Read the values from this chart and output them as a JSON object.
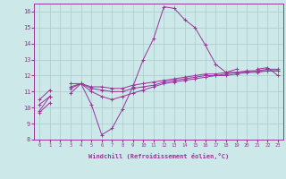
{
  "title": "",
  "xlabel": "Windchill (Refroidissement éolien,°C)",
  "background_color": "#cce8e8",
  "grid_color": "#aacccc",
  "line_color": "#993399",
  "x_values": [
    0,
    1,
    2,
    3,
    4,
    5,
    6,
    7,
    8,
    9,
    10,
    11,
    12,
    13,
    14,
    15,
    16,
    17,
    18,
    19,
    20,
    21,
    22,
    23
  ],
  "series1": [
    9.8,
    10.7,
    null,
    11.3,
    11.5,
    10.2,
    8.3,
    8.7,
    9.9,
    11.3,
    13.0,
    14.3,
    16.3,
    16.2,
    15.5,
    15.0,
    13.9,
    12.7,
    12.2,
    12.4,
    null,
    12.4,
    12.5,
    12.0
  ],
  "series2": [
    10.5,
    11.1,
    null,
    11.5,
    11.5,
    11.3,
    11.3,
    11.2,
    11.2,
    11.4,
    11.5,
    11.6,
    11.7,
    11.8,
    11.9,
    12.0,
    12.1,
    12.1,
    12.2,
    12.2,
    12.3,
    12.3,
    12.4,
    12.4
  ],
  "series3": [
    10.2,
    10.7,
    null,
    11.2,
    11.5,
    11.2,
    11.1,
    11.0,
    11.0,
    11.2,
    11.3,
    11.4,
    11.6,
    11.7,
    11.8,
    11.9,
    12.0,
    12.0,
    12.1,
    12.2,
    12.2,
    12.3,
    12.3,
    12.3
  ],
  "series4": [
    9.7,
    10.3,
    null,
    10.9,
    11.5,
    11.0,
    10.7,
    10.5,
    10.7,
    10.9,
    11.1,
    11.3,
    11.5,
    11.6,
    11.7,
    11.8,
    11.9,
    12.0,
    12.0,
    12.1,
    12.2,
    12.2,
    12.3,
    12.3
  ],
  "ylim": [
    8,
    16.5
  ],
  "yticks": [
    8,
    9,
    10,
    11,
    12,
    13,
    14,
    15,
    16
  ],
  "xlim": [
    -0.5,
    23.5
  ]
}
